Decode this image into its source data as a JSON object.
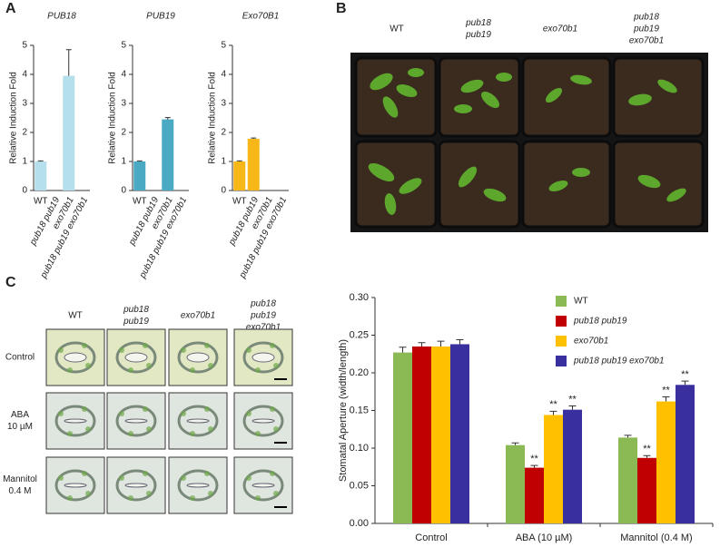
{
  "panel_labels": [
    "A",
    "B",
    "C"
  ],
  "photo_b": {
    "genotypes": [
      [
        "WT"
      ],
      [
        "pub18",
        "pub19"
      ],
      [
        "exo70b1"
      ],
      [
        "pub18",
        "pub19",
        "exo70b1"
      ]
    ]
  },
  "micrographs": {
    "genotypes": [
      [
        "WT"
      ],
      [
        "pub18",
        "pub19"
      ],
      [
        "exo70b1"
      ],
      [
        "pub18",
        "pub19",
        "exo70b1"
      ]
    ],
    "treatments": [
      [
        "Control"
      ],
      [
        "ABA",
        "10 µM"
      ],
      [
        "Mannitol",
        "0.4 M"
      ]
    ]
  },
  "chart_data": [
    {
      "type": "bar",
      "title": "PUB18",
      "y_label": "Relative Induction Fold",
      "categories": [
        "WT",
        "pub18 pub19",
        "exo70b1",
        "pub18 pub19 exo70b1"
      ],
      "values": [
        1,
        0,
        3.95,
        0
      ],
      "errors": [
        0.02,
        0,
        0.9,
        0
      ],
      "color": "#b5dfea",
      "ylim": [
        0,
        5
      ],
      "yticks": [
        0,
        1,
        2,
        3,
        4,
        5
      ]
    },
    {
      "type": "bar",
      "title": "PUB19",
      "y_label": "Relative Induction Fold",
      "categories": [
        "WT",
        "pub18 pub19",
        "exo70b1",
        "pub18 pub19 exo70b1"
      ],
      "values": [
        1,
        0,
        2.45,
        0
      ],
      "errors": [
        0.02,
        0,
        0.06,
        0
      ],
      "color": "#4aaac4",
      "ylim": [
        0,
        5
      ],
      "yticks": [
        0,
        1,
        2,
        3,
        4,
        5
      ]
    },
    {
      "type": "bar",
      "title": "Exo70B1",
      "y_label": "Relative Induction Fold",
      "categories": [
        "WT",
        "pub18 pub19",
        "exo70b1",
        "pub18 pub19 exo70b1"
      ],
      "values": [
        1,
        1.78,
        0,
        0
      ],
      "errors": [
        0.02,
        0.03,
        0,
        0
      ],
      "color": "#f7b718",
      "ylim": [
        0,
        5
      ],
      "yticks": [
        0,
        1,
        2,
        3,
        4,
        5
      ]
    },
    {
      "type": "grouped_bar",
      "y_label": "Stomatal Aperture (width/length)",
      "categories": [
        "Control",
        "ABA (10 µM)",
        "Mannitol (0.4 M)"
      ],
      "series": [
        {
          "name": "WT",
          "color": "#8bb954",
          "values": [
            0.227,
            0.104,
            0.114
          ],
          "errors": [
            0.007,
            0.003,
            0.003
          ],
          "annotations": [
            null,
            null,
            null
          ]
        },
        {
          "name": "pub18 pub19",
          "color": "#c00000",
          "values": [
            0.235,
            0.074,
            0.087
          ],
          "errors": [
            0.005,
            0.003,
            0.003
          ],
          "annotations": [
            null,
            "**",
            "**"
          ]
        },
        {
          "name": "exo70b1",
          "color": "#ffc000",
          "values": [
            0.235,
            0.144,
            0.162
          ],
          "errors": [
            0.007,
            0.005,
            0.006
          ],
          "annotations": [
            null,
            "**",
            "**"
          ]
        },
        {
          "name": "pub18 pub19 exo70b1",
          "color": "#3a2f9e",
          "values": [
            0.238,
            0.151,
            0.184
          ],
          "errors": [
            0.006,
            0.005,
            0.005
          ],
          "annotations": [
            null,
            "**",
            "**"
          ]
        }
      ],
      "legend": "upper right",
      "ylim": [
        0,
        0.3
      ],
      "yticks": [
        {
          "value": 0,
          "label": "0.00"
        },
        {
          "value": 0.05,
          "label": "0.05"
        },
        {
          "value": 0.1,
          "label": "0.10"
        },
        {
          "value": 0.15,
          "label": "0.15"
        },
        {
          "value": 0.2,
          "label": "0.20"
        },
        {
          "value": 0.25,
          "label": "0.25"
        },
        {
          "value": 0.3,
          "label": "0.30"
        }
      ]
    }
  ]
}
